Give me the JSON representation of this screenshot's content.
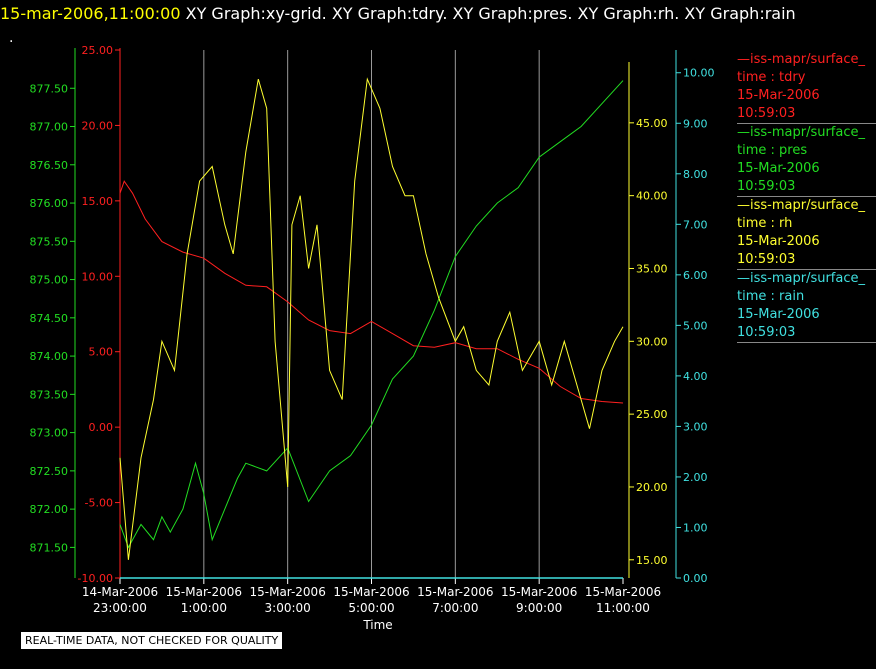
{
  "header": {
    "timestamp": "15-mar-2006,11:00:00",
    "graphs": "XY Graph:xy-grid.  XY Graph:tdry.  XY Graph:pres.  XY Graph:rh.  XY Graph:rain",
    "dot": "."
  },
  "disclaimer": "REAL-TIME DATA, NOT CHECKED FOR QUALITY",
  "legend": [
    {
      "source": "—iss-mapr/surface_",
      "var": "time : tdry",
      "date": "15-Mar-2006",
      "time": "10:59:03",
      "color": "#ff2020"
    },
    {
      "source": "—iss-mapr/surface_",
      "var": "time : pres",
      "date": "15-Mar-2006",
      "time": "10:59:03",
      "color": "#22dd22"
    },
    {
      "source": "—iss-mapr/surface_",
      "var": "time : rh",
      "date": "15-Mar-2006",
      "time": "10:59:03",
      "color": "#ffff30"
    },
    {
      "source": "—iss-mapr/surface_",
      "var": "time : rain",
      "date": "15-Mar-2006",
      "time": "10:59:03",
      "color": "#40e0e0"
    }
  ],
  "chart_data": {
    "type": "line",
    "xlabel": "Time",
    "x_range": [
      "14-Mar-2006 23:00:00",
      "15-Mar-2006 11:00:00"
    ],
    "x_ticks": [
      {
        "date": "14-Mar-2006",
        "time": "23:00:00"
      },
      {
        "date": "15-Mar-2006",
        "time": "1:00:00"
      },
      {
        "date": "15-Mar-2006",
        "time": "3:00:00"
      },
      {
        "date": "15-Mar-2006",
        "time": "5:00:00"
      },
      {
        "date": "15-Mar-2006",
        "time": "7:00:00"
      },
      {
        "date": "15-Mar-2006",
        "time": "9:00:00"
      },
      {
        "date": "15-Mar-2006",
        "time": "11:00:00"
      }
    ],
    "grid": "vertical",
    "axes": {
      "tdry": {
        "color": "#ff2020",
        "ylim": [
          -10,
          25
        ],
        "ticks": [
          "-10.00",
          "-5.00",
          "0.00",
          "5.00",
          "10.00",
          "15.00",
          "20.00",
          "25.00"
        ]
      },
      "pres": {
        "color": "#22dd22",
        "ylim": [
          871.1,
          878.0
        ],
        "ticks": [
          "871.50",
          "872.00",
          "872.50",
          "873.00",
          "873.50",
          "874.00",
          "874.50",
          "875.00",
          "875.50",
          "876.00",
          "876.50",
          "877.00",
          "877.50"
        ]
      },
      "rh": {
        "color": "#ffff30",
        "ylim": [
          13.75,
          50.0
        ],
        "ticks": [
          "15.00",
          "20.00",
          "25.00",
          "30.00",
          "35.00",
          "40.00",
          "45.00"
        ]
      },
      "rain": {
        "color": "#40e0e0",
        "ylim": [
          0,
          10.45
        ],
        "ticks": [
          "0.00",
          "1.00",
          "2.00",
          "3.00",
          "4.00",
          "5.00",
          "6.00",
          "7.00",
          "8.00",
          "9.00",
          "10.00"
        ]
      }
    },
    "series": [
      {
        "name": "time : tdry",
        "axis": "tdry",
        "color": "#ff2020",
        "x": [
          23.0,
          23.1,
          23.3,
          23.6,
          24.0,
          24.5,
          25.0,
          25.5,
          26.0,
          26.5,
          27.0,
          27.5,
          28.0,
          28.5,
          29.0,
          29.5,
          30.0,
          30.5,
          31.0,
          31.5,
          32.0,
          32.5,
          33.0,
          33.5,
          34.0,
          34.5,
          35.0
        ],
        "y": [
          15.5,
          16.3,
          15.5,
          13.8,
          12.3,
          11.6,
          11.2,
          10.2,
          9.4,
          9.3,
          8.3,
          7.1,
          6.4,
          6.2,
          7.0,
          6.2,
          5.4,
          5.3,
          5.6,
          5.2,
          5.2,
          4.5,
          3.9,
          2.7,
          1.9,
          1.7,
          1.6
        ]
      },
      {
        "name": "time : pres",
        "axis": "pres",
        "color": "#22dd22",
        "x": [
          23.0,
          23.2,
          23.5,
          23.8,
          24.0,
          24.2,
          24.5,
          24.8,
          25.0,
          25.2,
          25.5,
          25.8,
          26.0,
          26.5,
          27.0,
          27.5,
          28.0,
          28.5,
          29.0,
          29.5,
          30.0,
          30.5,
          31.0,
          31.5,
          32.0,
          32.5,
          33.0,
          33.5,
          34.0,
          34.5,
          35.0
        ],
        "y": [
          871.8,
          871.5,
          871.8,
          871.6,
          871.9,
          871.7,
          872.0,
          872.6,
          872.2,
          871.6,
          872.0,
          872.4,
          872.6,
          872.5,
          872.8,
          872.1,
          872.5,
          872.7,
          873.1,
          873.7,
          874.0,
          874.6,
          875.3,
          875.7,
          876.0,
          876.2,
          876.6,
          876.8,
          877.0,
          877.3,
          877.6
        ]
      },
      {
        "name": "time : rh",
        "axis": "rh",
        "color": "#ffff30",
        "x": [
          23.0,
          23.2,
          23.5,
          23.8,
          24.0,
          24.3,
          24.6,
          24.9,
          25.2,
          25.5,
          25.7,
          26.0,
          26.3,
          26.5,
          26.7,
          27.0,
          27.1,
          27.3,
          27.5,
          27.7,
          28.0,
          28.3,
          28.6,
          28.9,
          29.2,
          29.5,
          29.8,
          30.0,
          30.3,
          30.6,
          31.0,
          31.2,
          31.5,
          31.8,
          32.0,
          32.3,
          32.6,
          33.0,
          33.3,
          33.6,
          34.0,
          34.2,
          34.5,
          34.8,
          35.0
        ],
        "y": [
          22.0,
          15.0,
          22.0,
          26.0,
          30.0,
          28.0,
          36.0,
          41.0,
          42.0,
          38.0,
          36.0,
          43.0,
          48.0,
          46.0,
          30.0,
          20.0,
          38.0,
          40.0,
          35.0,
          38.0,
          28.0,
          26.0,
          41.0,
          48.0,
          46.0,
          42.0,
          40.0,
          40.0,
          36.0,
          33.0,
          30.0,
          31.0,
          28.0,
          27.0,
          30.0,
          32.0,
          28.0,
          30.0,
          27.0,
          30.0,
          26.0,
          24.0,
          28.0,
          30.0,
          31.0
        ]
      },
      {
        "name": "time : rain",
        "axis": "rain",
        "color": "#40e0e0",
        "x": [
          23.0,
          35.0
        ],
        "y": [
          0.0,
          0.0
        ]
      }
    ]
  }
}
